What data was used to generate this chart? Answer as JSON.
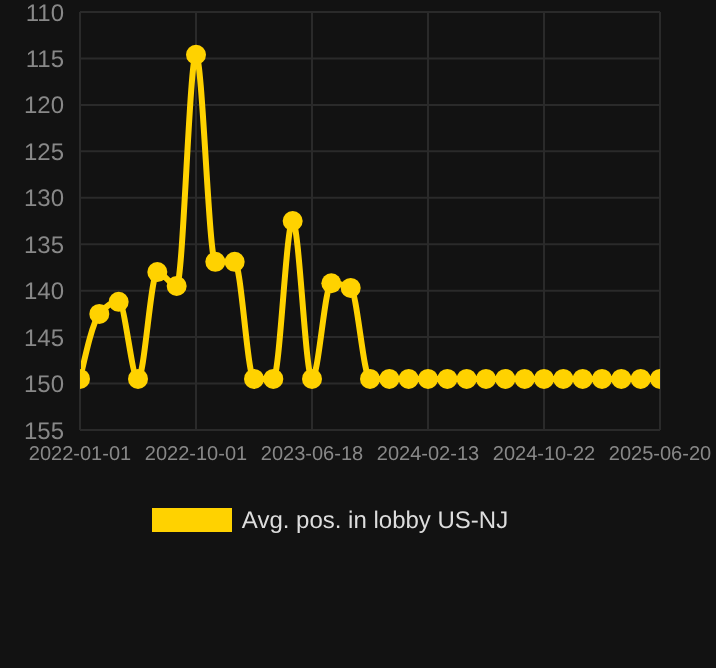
{
  "chart_data": {
    "type": "line",
    "categories": [
      "2022-01-01",
      null,
      null,
      null,
      null,
      null,
      "2022-10-01",
      null,
      null,
      null,
      null,
      null,
      "2023-06-18",
      null,
      null,
      null,
      null,
      null,
      "2024-02-13",
      null,
      null,
      null,
      null,
      null,
      "2024-10-22",
      null,
      null,
      null,
      null,
      null,
      "2025-06-20"
    ],
    "series": [
      {
        "name": "Avg. pos. in lobby US-NJ",
        "color": "#ffd200",
        "values": [
          149.5,
          142.5,
          141.2,
          149.5,
          138,
          139.5,
          114.6,
          136.9,
          136.9,
          149.5,
          149.5,
          132.5,
          149.5,
          139.2,
          139.7,
          149.5,
          149.5,
          149.5,
          149.5,
          149.5,
          149.5,
          149.5,
          149.5,
          149.5,
          149.5,
          149.5,
          149.5,
          149.5,
          149.5,
          149.5,
          149.5
        ]
      }
    ],
    "ylim": [
      155,
      110
    ],
    "yticks": [
      110,
      115,
      120,
      125,
      130,
      135,
      140,
      145,
      150,
      155
    ],
    "grid": true,
    "legend": "bottom",
    "marker": "circle",
    "line_style": "solid"
  }
}
